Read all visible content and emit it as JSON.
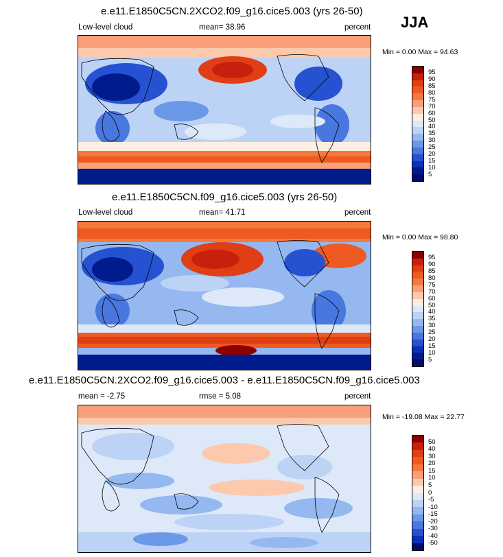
{
  "season": "JJA",
  "panels": [
    {
      "title": "e.e11.E1850C5CN.2XCO2.f09_g16.cice5.003 (yrs 26-50)",
      "left_label": "Low-level cloud",
      "center_label": "mean=  38.96",
      "right_label": "percent",
      "minmax": "Min =   0.00 Max =  94.63",
      "colorbar": {
        "labels": [
          "95",
          "90",
          "85",
          "80",
          "75",
          "70",
          "60",
          "50",
          "40",
          "35",
          "30",
          "25",
          "20",
          "15",
          "10",
          "5"
        ],
        "colors": [
          "#8c0000",
          "#c8200c",
          "#e03e14",
          "#ee5a22",
          "#f5793d",
          "#f8a07a",
          "#fcc9ad",
          "#fdeee0",
          "#dde9f9",
          "#bcd3f5",
          "#94b8ef",
          "#6b99e8",
          "#4877df",
          "#2652d2",
          "#0f2fb7",
          "#001b8c",
          "#000d6b"
        ]
      }
    },
    {
      "title": "e.e11.E1850C5CN.f09_g16.cice5.003 (yrs 26-50)",
      "left_label": "Low-level cloud",
      "center_label": "mean=  41.71",
      "right_label": "percent",
      "minmax": "Min =   0.00 Max =  98.80",
      "colorbar": {
        "labels": [
          "95",
          "90",
          "85",
          "80",
          "75",
          "70",
          "60",
          "50",
          "40",
          "35",
          "30",
          "25",
          "20",
          "15",
          "10",
          "5"
        ],
        "colors": [
          "#8c0000",
          "#c8200c",
          "#e03e14",
          "#ee5a22",
          "#f5793d",
          "#f8a07a",
          "#fcc9ad",
          "#fdeee0",
          "#dde9f9",
          "#bcd3f5",
          "#94b8ef",
          "#6b99e8",
          "#4877df",
          "#2652d2",
          "#0f2fb7",
          "#001b8c",
          "#000d6b"
        ]
      }
    },
    {
      "title": "e.e11.E1850C5CN.2XCO2.f09_g16.cice5.003 - e.e11.E1850C5CN.f09_g16.cice5.003",
      "left_label": "mean =  -2.75",
      "center_label": "rmse =   5.08",
      "right_label": "percent",
      "minmax": "Min = -19.08 Max =  22.77",
      "colorbar": {
        "labels": [
          "50",
          "40",
          "30",
          "20",
          "15",
          "10",
          "5",
          "0",
          "-5",
          "-10",
          "-15",
          "-20",
          "-30",
          "-40",
          "-50"
        ],
        "colors": [
          "#8c0000",
          "#c8200c",
          "#e03e14",
          "#ee5a22",
          "#f5793d",
          "#f8a07a",
          "#fcc9ad",
          "#fdeee0",
          "#dde9f9",
          "#bcd3f5",
          "#94b8ef",
          "#6b99e8",
          "#4877df",
          "#2652d2",
          "#0f2fb7",
          "#000d6b"
        ]
      }
    }
  ]
}
